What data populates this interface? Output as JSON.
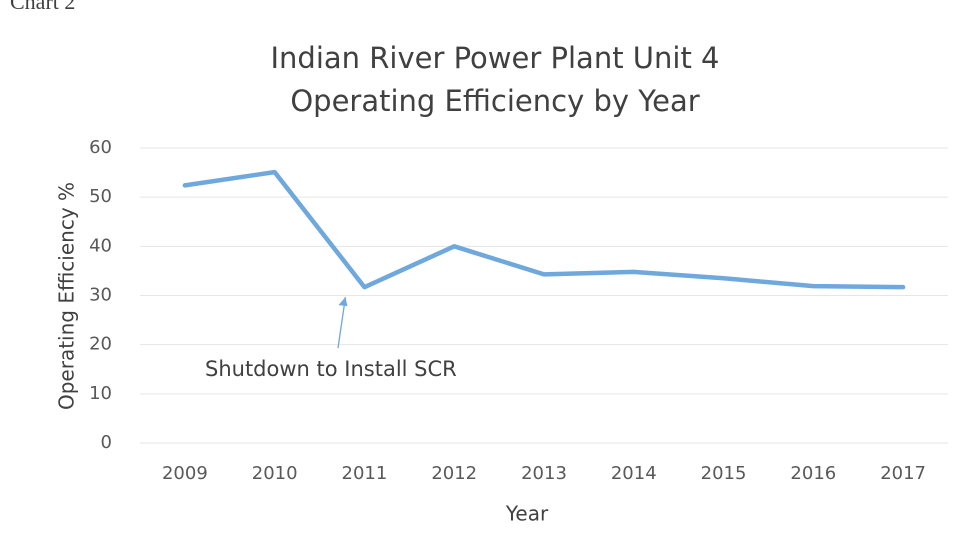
{
  "chart_data": {
    "type": "line",
    "caption": "Chart 2",
    "title": [
      "Indian River Power Plant Unit 4",
      "Operating Efficiency by Year"
    ],
    "x_label": "Year",
    "y_label": "Operating Efficiency %",
    "categories": [
      "2009",
      "2010",
      "2011",
      "2012",
      "2013",
      "2014",
      "2015",
      "2016",
      "2017"
    ],
    "series": [
      {
        "name": "Operating Efficiency",
        "color": "#6fa8dc",
        "values": [
          52.4,
          55.1,
          31.7,
          40.0,
          34.3,
          34.8,
          33.5,
          31.9,
          31.7
        ]
      }
    ],
    "ylim": [
      0,
      60
    ],
    "yticks": [
      0,
      10,
      20,
      30,
      40,
      50,
      60
    ],
    "grid": true,
    "annotation": {
      "text": "Shutdown to Install SCR",
      "category": 2
    }
  }
}
